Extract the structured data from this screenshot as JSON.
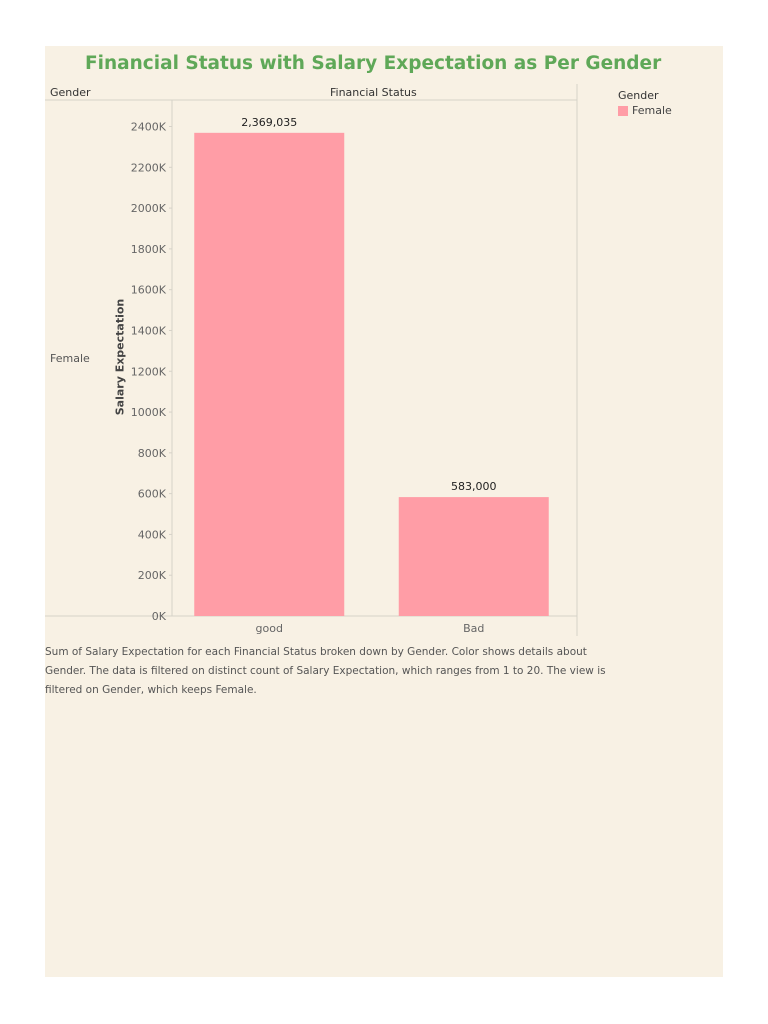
{
  "colors": {
    "title": "#5fa858",
    "bar": "#ff9da6",
    "axis_line": "#d6d2c8",
    "tick_text": "#666666"
  },
  "headers": {
    "row": "Gender",
    "column": "Financial Status",
    "row_value": "Female"
  },
  "legend": {
    "title": "Gender",
    "items": [
      {
        "label": "Female",
        "color": "#ff9da6"
      }
    ]
  },
  "caption": "Sum of Salary Expectation for each Financial Status broken down by Gender.  Color shows details about Gender. The data is filtered on distinct count of Salary Expectation, which ranges from 1 to 20. The view is filtered on Gender, which keeps Female.",
  "chart_data": {
    "type": "bar",
    "title": "Financial Status with Salary Expectation as Per Gender",
    "xlabel": "Financial Status",
    "ylabel": "Salary Expectation",
    "categories": [
      "good",
      "Bad"
    ],
    "series": [
      {
        "name": "Female",
        "values": [
          2369035,
          583000
        ]
      }
    ],
    "data_labels": [
      "2,369,035",
      "583,000"
    ],
    "ylim": [
      0,
      2530000
    ],
    "yticks": [
      0,
      200000,
      400000,
      600000,
      800000,
      1000000,
      1200000,
      1400000,
      1600000,
      1800000,
      2000000,
      2200000,
      2400000
    ],
    "ytick_labels": [
      "0K",
      "200K",
      "400K",
      "600K",
      "800K",
      "1000K",
      "1200K",
      "1400K",
      "1600K",
      "1800K",
      "2000K",
      "2200K",
      "2400K"
    ],
    "grid": false,
    "legend_position": "top-right"
  }
}
